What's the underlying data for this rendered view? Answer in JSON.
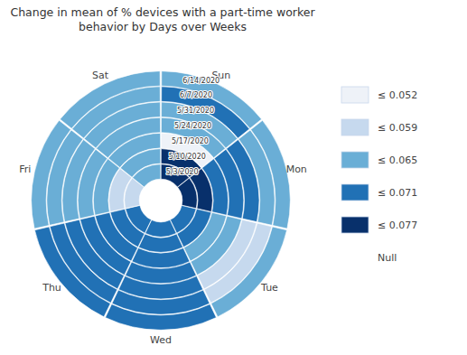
{
  "chart_data": {
    "type": "radial_heatmap",
    "title": "Change in mean of % devices with a part-time worker\nbehavior by Days over Weeks",
    "categories": [
      "Sun",
      "Mon",
      "Tue",
      "Wed",
      "Thu",
      "Fri",
      "Sat"
    ],
    "weeks": [
      "5/3/2020",
      "5/10/2020",
      "5/17/2020",
      "5/24/2020",
      "5/31/2020",
      "6/7/2020",
      "6/14/2020"
    ],
    "cells": [
      [
        4,
        4,
        0,
        2,
        2,
        3,
        2
      ],
      [
        4,
        4,
        3,
        3,
        3,
        2,
        2
      ],
      [
        3,
        3,
        2,
        2,
        1,
        1,
        2
      ],
      [
        3,
        3,
        3,
        3,
        3,
        3,
        3
      ],
      [
        3,
        3,
        3,
        3,
        3,
        3,
        3
      ],
      [
        1,
        1,
        2,
        2,
        2,
        2,
        2
      ],
      [
        2,
        2,
        2,
        2,
        2,
        2,
        2
      ]
    ],
    "class_labels": [
      "≤ 0.052",
      "≤ 0.059",
      "≤ 0.065",
      "≤ 0.071",
      "≤ 0.077",
      "Null"
    ],
    "class_colors": [
      "#eef2f8",
      "#c6d9ee",
      "#6aaed6",
      "#2171b5",
      "#08306b"
    ]
  }
}
